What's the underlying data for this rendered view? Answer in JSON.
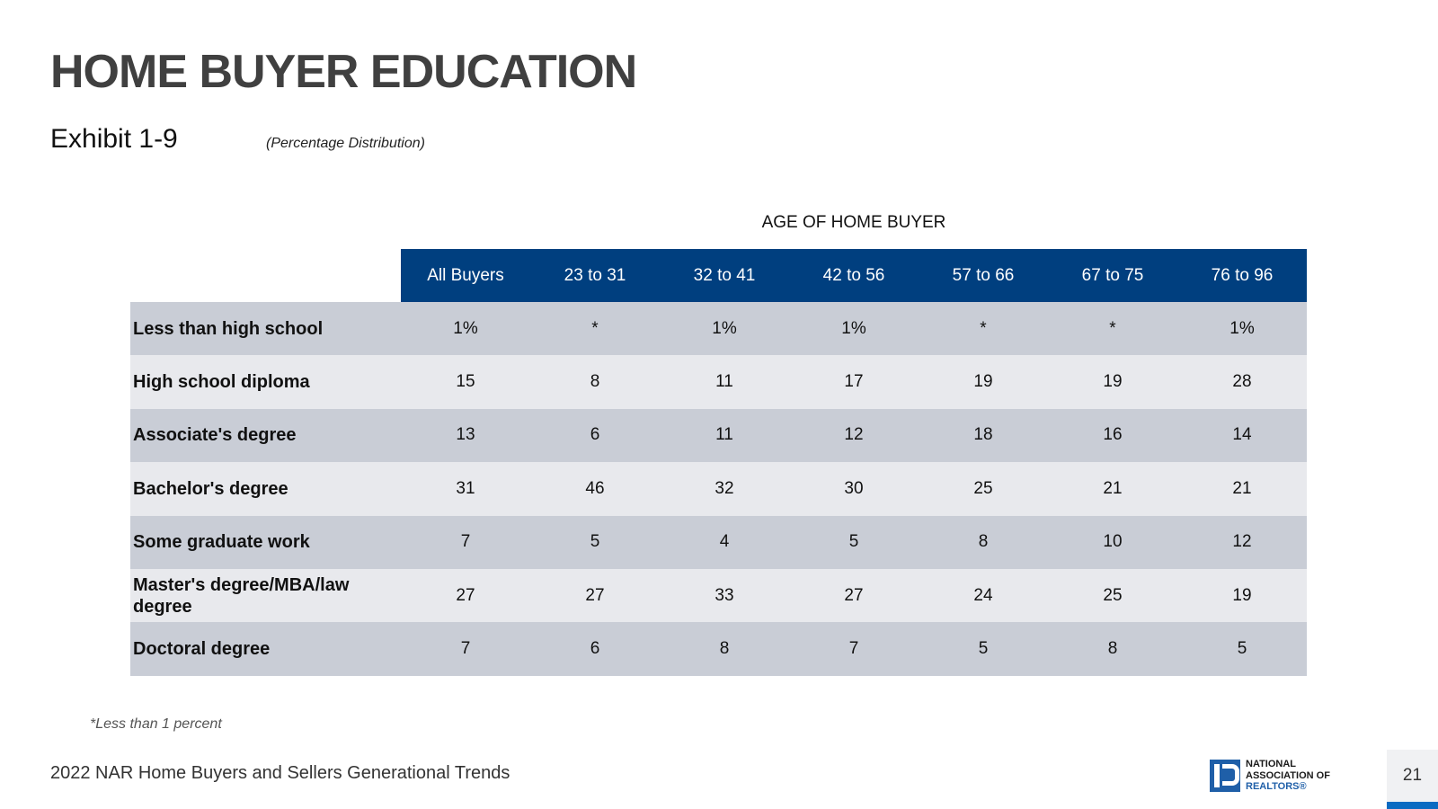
{
  "page": {
    "title": "HOME BUYER EDUCATION",
    "exhibit": "Exhibit 1-9",
    "subtitle": "(Percentage Distribution)",
    "group_label": "AGE OF HOME BUYER"
  },
  "table": {
    "columns": [
      "All Buyers",
      "23 to 31",
      "32 to 41",
      "42 to 56",
      "57 to 66",
      "67 to 75",
      "76 to 96"
    ],
    "rows": [
      {
        "label": "Less than high school",
        "values": [
          "1%",
          "*",
          "1%",
          "1%",
          "*",
          "*",
          "1%"
        ]
      },
      {
        "label": "High school diploma",
        "values": [
          "15",
          "8",
          "11",
          "17",
          "19",
          "19",
          "28"
        ]
      },
      {
        "label": "Associate's degree",
        "values": [
          "13",
          "6",
          "11",
          "12",
          "18",
          "16",
          "14"
        ]
      },
      {
        "label": "Bachelor's degree",
        "values": [
          "31",
          "46",
          "32",
          "30",
          "25",
          "21",
          "21"
        ]
      },
      {
        "label": "Some graduate work",
        "values": [
          "7",
          "5",
          "4",
          "5",
          "8",
          "10",
          "12"
        ]
      },
      {
        "label": "Master's degree/MBA/law degree",
        "values": [
          "27",
          "27",
          "33",
          "27",
          "24",
          "25",
          "19"
        ]
      },
      {
        "label": "Doctoral degree",
        "values": [
          "7",
          "6",
          "8",
          "7",
          "5",
          "8",
          "5"
        ]
      }
    ]
  },
  "footnote": "*Less than 1 percent",
  "footer": {
    "source": "2022 NAR Home Buyers and Sellers Generational Trends",
    "logo_lines": [
      "NATIONAL",
      "ASSOCIATION OF",
      "REALTORS®"
    ],
    "page_number": "21"
  },
  "colors": {
    "header_blue": "#003f7f",
    "row_dark": "#c9cdd6",
    "row_light": "#e8e9ed",
    "accent_blue": "#0a6bc2"
  }
}
